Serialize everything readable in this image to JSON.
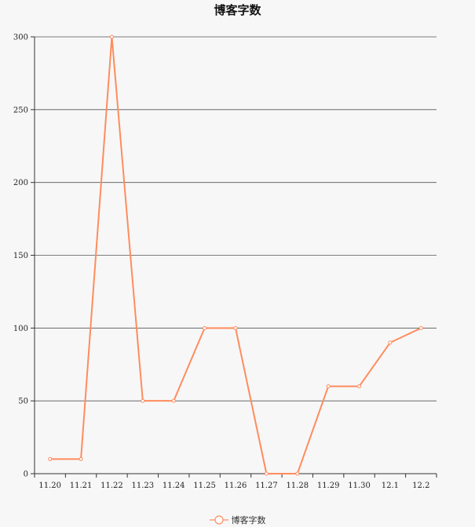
{
  "chart_data": {
    "type": "line",
    "title": "博客字数",
    "categories": [
      "11.20",
      "11.21",
      "11.22",
      "11.23",
      "11.24",
      "11.25",
      "11.26",
      "11.27",
      "11.28",
      "11.29",
      "11.30",
      "12.1",
      "12.2"
    ],
    "series": [
      {
        "name": "博客字数",
        "values": [
          10,
          10,
          300,
          50,
          50,
          100,
          100,
          0,
          0,
          60,
          60,
          90,
          100
        ],
        "color": "#ff8c5e"
      }
    ],
    "ylim": [
      0,
      300
    ],
    "yticks": [
      0,
      50,
      100,
      150,
      200,
      250,
      300
    ],
    "grid": true,
    "legend_position": "bottom"
  }
}
